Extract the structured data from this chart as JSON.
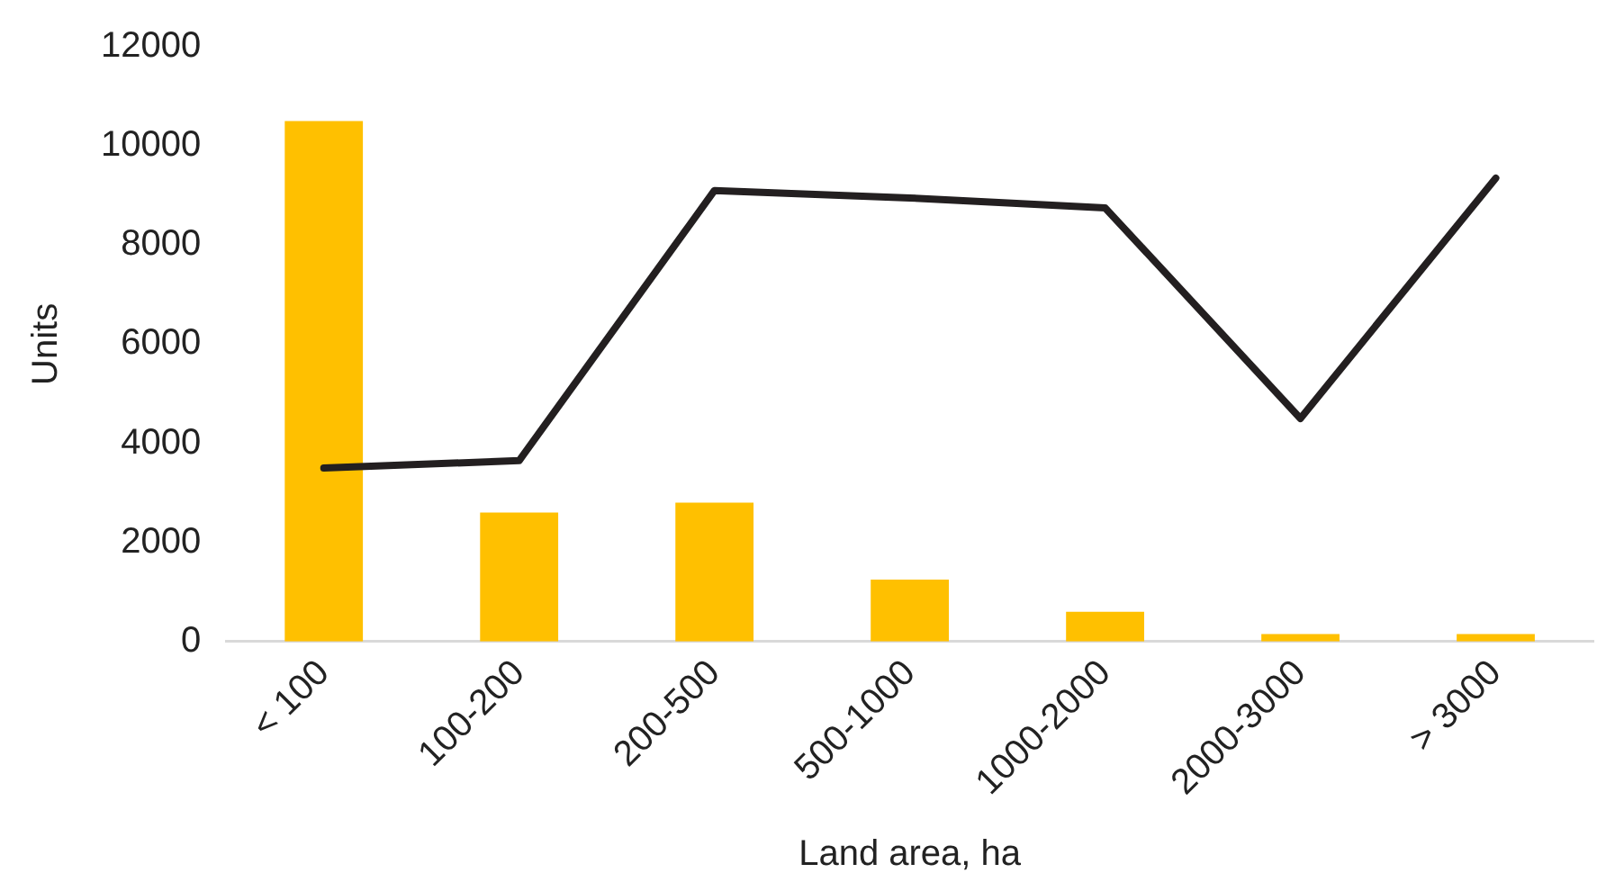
{
  "chart_data": {
    "type": "bar",
    "xlabel": "Land area, ha",
    "ylabel": "Units",
    "categories": [
      "< 100",
      "100-200",
      "200-500",
      "500-1000",
      "1000-2000",
      "2000-3000",
      "> 3000"
    ],
    "series": [
      {
        "color": "#ffc000",
        "values": [
          10500,
          2600,
          2800,
          1250,
          600,
          150,
          150
        ]
      },
      {
        "type": "line",
        "color": "#231f20",
        "values": [
          3500,
          3650,
          9100,
          8950,
          8750,
          4500,
          9350
        ]
      }
    ],
    "ylim": [
      0,
      12000
    ],
    "yticks": [
      0,
      2000,
      4000,
      6000,
      8000,
      10000,
      12000
    ],
    "grid": false,
    "legend": false,
    "marker": "none"
  }
}
